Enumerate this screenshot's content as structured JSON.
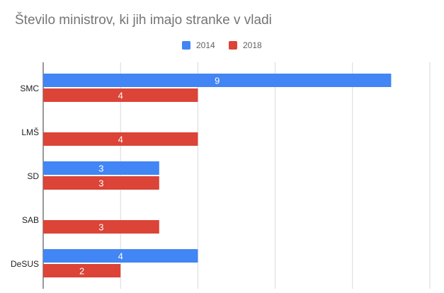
{
  "chart_data": {
    "type": "bar",
    "orientation": "horizontal",
    "title": "Število ministrov, ki jih imajo stranke v vladi",
    "categories": [
      "SMC",
      "LMŠ",
      "SD",
      "SAB",
      "DeSUS"
    ],
    "series": [
      {
        "name": "2014",
        "color": "#4285f4",
        "values": [
          9,
          null,
          3,
          null,
          4
        ]
      },
      {
        "name": "2018",
        "color": "#db4437",
        "values": [
          4,
          4,
          3,
          3,
          2
        ]
      }
    ],
    "xlim": [
      0,
      10
    ],
    "grid": true,
    "legend": "top-center",
    "xlabel": "",
    "ylabel": ""
  }
}
